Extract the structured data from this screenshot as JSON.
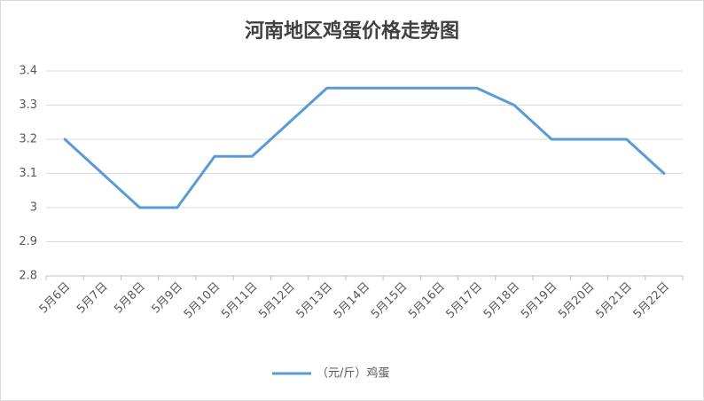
{
  "chart_data": {
    "type": "line",
    "title": "河南地区鸡蛋价格走势图",
    "categories": [
      "5月6日",
      "5月7日",
      "5月8日",
      "5月9日",
      "5月10日",
      "5月11日",
      "5月12日",
      "5月13日",
      "5月14日",
      "5月15日",
      "5月16日",
      "5月17日",
      "5月18日",
      "5月19日",
      "5月20日",
      "5月21日",
      "5月22日"
    ],
    "series": [
      {
        "name": "（元/斤）鸡蛋",
        "color": "#5b9bd5",
        "values": [
          3.2,
          3.1,
          3.0,
          3.0,
          3.15,
          3.15,
          3.25,
          3.35,
          3.35,
          3.35,
          3.35,
          3.35,
          3.3,
          3.2,
          3.2,
          3.2,
          3.1
        ]
      }
    ],
    "ylim": [
      2.8,
      3.4
    ],
    "yticks": [
      2.8,
      2.9,
      3,
      3.1,
      3.2,
      3.3,
      3.4
    ],
    "grid": true,
    "legend": "bottom"
  }
}
